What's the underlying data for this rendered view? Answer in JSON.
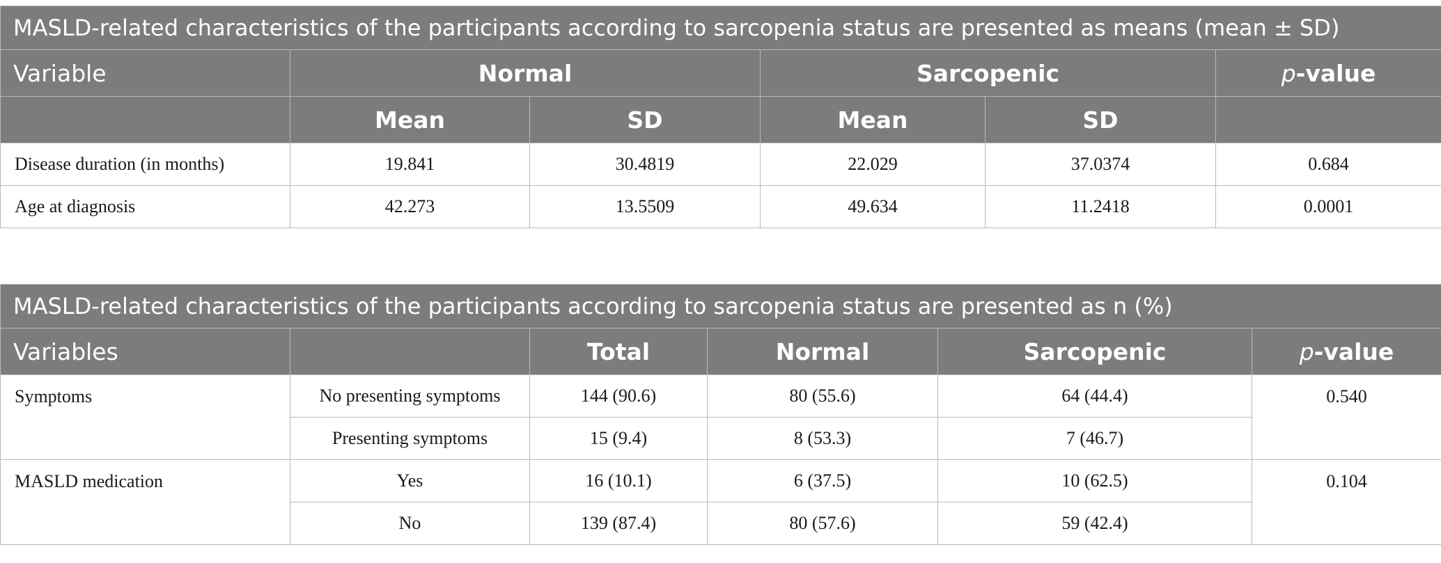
{
  "table1": {
    "caption": "MASLD-related characteristics of the participants according to sarcopenia status are presented as means (mean ± SD)",
    "headers": {
      "variable": "Variable",
      "normal": "Normal",
      "sarcopenic": "Sarcopenic",
      "p_prefix": "p",
      "p_suffix": "-value",
      "mean": "Mean",
      "sd": "SD"
    },
    "rows": [
      {
        "variable": "Disease duration (in months)",
        "normal_mean": "19.841",
        "normal_sd": "30.4819",
        "sarc_mean": "22.029",
        "sarc_sd": "37.0374",
        "p": "0.684"
      },
      {
        "variable": "Age at diagnosis",
        "normal_mean": "42.273",
        "normal_sd": "13.5509",
        "sarc_mean": "49.634",
        "sarc_sd": "11.2418",
        "p": "0.0001"
      }
    ]
  },
  "table2": {
    "caption": "MASLD-related characteristics of the participants according to sarcopenia status are presented as n (%)",
    "headers": {
      "variables": "Variables",
      "blank": "",
      "total": "Total",
      "normal": "Normal",
      "sarcopenic": "Sarcopenic",
      "p_prefix": "p",
      "p_suffix": "-value"
    },
    "groups": [
      {
        "variable": "Symptoms",
        "p": "0.540",
        "rows": [
          {
            "level": "No presenting symptoms",
            "total": "144 (90.6)",
            "normal": "80 (55.6)",
            "sarcopenic": "64 (44.4)"
          },
          {
            "level": "Presenting symptoms",
            "total": "15 (9.4)",
            "normal": "8 (53.3)",
            "sarcopenic": "7 (46.7)"
          }
        ]
      },
      {
        "variable": "MASLD medication",
        "p": "0.104",
        "rows": [
          {
            "level": "Yes",
            "total": "16 (10.1)",
            "normal": "6 (37.5)",
            "sarcopenic": "10 (62.5)"
          },
          {
            "level": "No",
            "total": "139 (87.4)",
            "normal": "80 (57.6)",
            "sarcopenic": "59 (42.4)"
          }
        ]
      }
    ]
  }
}
